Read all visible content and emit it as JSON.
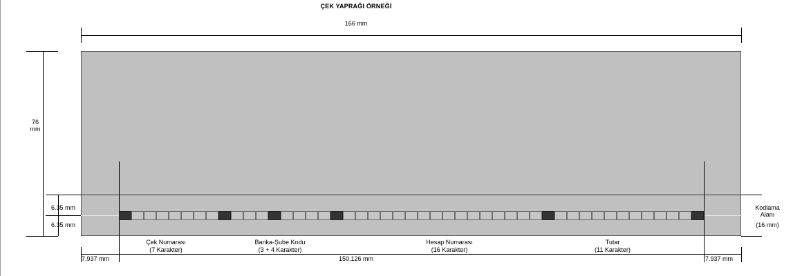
{
  "title": "ÇEK YAPRAĞI ÖRNEĞİ",
  "dimensions": {
    "width_total": "166 mm",
    "height_total_line1": "76",
    "height_total_line2": "mm",
    "band_upper": "6.35 mm",
    "band_lower": "6.35 mm",
    "margin_left": "7.937 mm",
    "coding_width": "150.126 mm",
    "margin_right": "7.937 mm"
  },
  "coding_area": {
    "line1": "Kodlama",
    "line2": "Alanı",
    "line3": "(16 mm)"
  },
  "fields": [
    {
      "name": "Çek Numarası",
      "chars": "(7 Karakter)"
    },
    {
      "name": "Banka-Şube Kodu",
      "chars": "(3 + 4 Karakter)"
    },
    {
      "name": "Hesap Numarası",
      "chars": "(16 Karakter)"
    },
    {
      "name": "Tutar",
      "chars": "(11 Karakter)"
    }
  ],
  "micr_cells": {
    "total": 47,
    "dark_indices": [
      0,
      8,
      12,
      17,
      34,
      46
    ]
  },
  "colors": {
    "check_fill": "#c0c0c0",
    "cell_fill": "#c6c6c6",
    "marker_fill": "#333333"
  }
}
